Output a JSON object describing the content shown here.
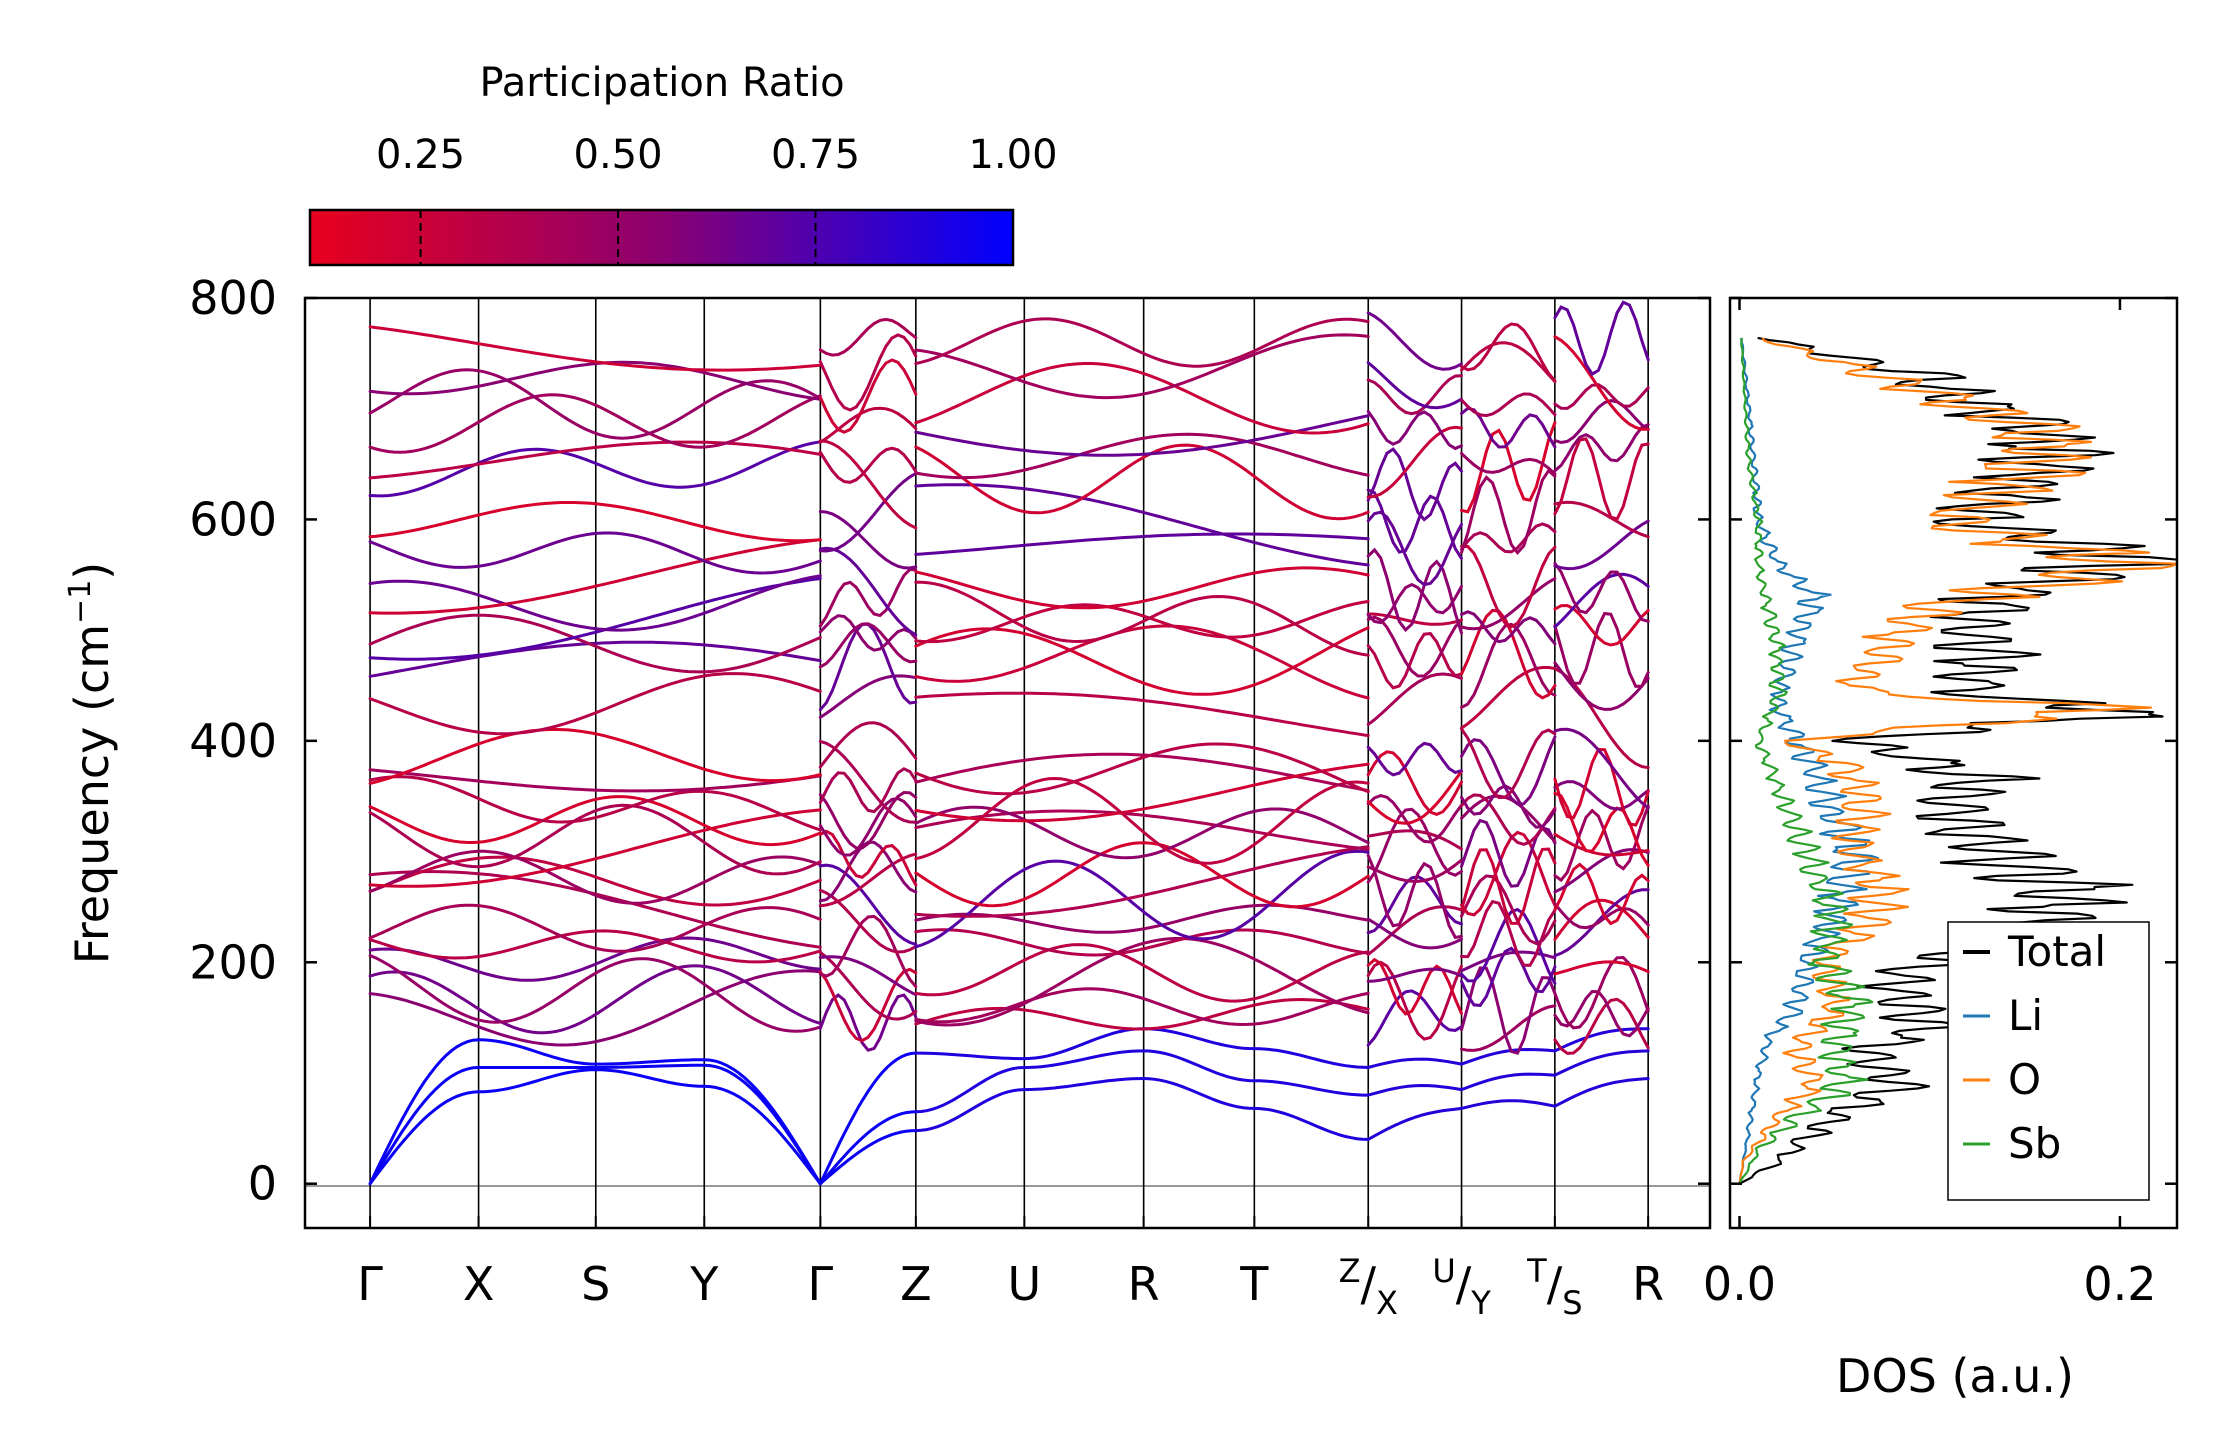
{
  "chart_data": [
    {
      "type": "line",
      "title": "",
      "subtype": "phonon-dispersion",
      "ylabel": "Frequency (cm⁻¹)",
      "ylabel_text": "Frequency (cm",
      "ylabel_sup": "−1",
      "ylabel_close": ")",
      "ylim": [
        -40,
        800
      ],
      "yticks": [
        0,
        200,
        400,
        600,
        800
      ],
      "ytick_labels": [
        "0",
        "200",
        "400",
        "600",
        "800"
      ],
      "kpath_labels": [
        "Γ",
        "X",
        "S",
        "Y",
        "Γ",
        "Z",
        "U",
        "R",
        "T",
        "Z|X",
        "U|Y",
        "T|S",
        "R"
      ],
      "kpath_label_parts": [
        {
          "main": "Γ"
        },
        {
          "main": "X"
        },
        {
          "main": "S"
        },
        {
          "main": "Y"
        },
        {
          "main": "Γ"
        },
        {
          "main": "Z"
        },
        {
          "main": "U"
        },
        {
          "main": "R"
        },
        {
          "main": "T"
        },
        {
          "sup": "Z",
          "sub": "X"
        },
        {
          "sup": "U",
          "sub": "Y"
        },
        {
          "sup": "T",
          "sub": "S"
        },
        {
          "main": "R"
        }
      ],
      "kpath_positions": [
        0,
        1,
        2.08,
        3.08,
        4.15,
        5.03,
        6.03,
        7.13,
        8.15,
        9.2,
        10.06,
        10.92,
        11.78
      ],
      "segments": [
        [
          0,
          4.15
        ],
        [
          4.15,
          5.03
        ],
        [
          5.03,
          9.2
        ],
        [
          9.2,
          10.06
        ],
        [
          10.06,
          10.92
        ],
        [
          10.92,
          11.78
        ]
      ],
      "colorbar": {
        "label": "Participation Ratio",
        "range": [
          0.11,
          1.0
        ],
        "ticks": [
          0.25,
          0.5,
          0.75,
          1.0
        ],
        "tick_labels": [
          "0.25",
          "0.50",
          "0.75",
          "1.00"
        ],
        "low_color": "#e8001e",
        "mid_color": "#8b0070",
        "high_color": "#0000ff"
      },
      "acoustic_branches": {
        "gamma_freq": 0,
        "X": [
          83,
          105,
          130
        ],
        "S": [
          103,
          105,
          108
        ],
        "Y": [
          88,
          107,
          112
        ],
        "Z": [
          48,
          65,
          118
        ],
        "U": [
          85,
          105,
          113
        ],
        "R": [
          95,
          120,
          140
        ],
        "T": [
          68,
          93,
          122
        ],
        "ZX": [
          40,
          80,
          105
        ],
        "UY": [
          68,
          85,
          108
        ],
        "TS": [
          70,
          98,
          120
        ]
      },
      "optical_band_frequencies_at_gamma": [
        145,
        162,
        180,
        195,
        218,
        232,
        250,
        268,
        280,
        302,
        318,
        330,
        352,
        365,
        382,
        430,
        465,
        485,
        505,
        520,
        540,
        575,
        600,
        640,
        658,
        685,
        710,
        730,
        760
      ]
    },
    {
      "type": "line",
      "title": "",
      "subtype": "density-of-states",
      "xlabel": "DOS (a.u.)",
      "xlim": [
        -0.005,
        0.23
      ],
      "xticks": [
        0.0,
        0.2
      ],
      "xtick_labels": [
        "0.0",
        "0.2"
      ],
      "ylim": [
        -40,
        800
      ],
      "legend_position": "lower-right",
      "series": [
        {
          "name": "Total",
          "color": "#000000",
          "peaks": [
            [
              0,
              0
            ],
            [
              20,
              0.02
            ],
            [
              60,
              0.05
            ],
            [
              90,
              0.085
            ],
            [
              120,
              0.065
            ],
            [
              140,
              0.1
            ],
            [
              180,
              0.08
            ],
            [
              200,
              0.1
            ],
            [
              230,
              0.16
            ],
            [
              270,
              0.17
            ],
            [
              290,
              0.14
            ],
            [
              300,
              0.13
            ],
            [
              340,
              0.11
            ],
            [
              365,
              0.13
            ],
            [
              400,
              0.06
            ],
            [
              428,
              0.22
            ],
            [
              440,
              0.12
            ],
            [
              470,
              0.13
            ],
            [
              500,
              0.12
            ],
            [
              535,
              0.14
            ],
            [
              566,
              0.215
            ],
            [
              595,
              0.12
            ],
            [
              645,
              0.16
            ],
            [
              680,
              0.165
            ],
            [
              712,
              0.11
            ],
            [
              730,
              0.1
            ],
            [
              765,
              0.01
            ]
          ]
        },
        {
          "name": "Li",
          "color": "#1f77b4",
          "peaks": [
            [
              0,
              0
            ],
            [
              50,
              0.005
            ],
            [
              100,
              0.01
            ],
            [
              130,
              0.015
            ],
            [
              160,
              0.03
            ],
            [
              200,
              0.035
            ],
            [
              240,
              0.05
            ],
            [
              300,
              0.06
            ],
            [
              330,
              0.05
            ],
            [
              370,
              0.04
            ],
            [
              400,
              0.03
            ],
            [
              430,
              0.02
            ],
            [
              470,
              0.025
            ],
            [
              530,
              0.04
            ],
            [
              560,
              0.02
            ],
            [
              600,
              0.01
            ],
            [
              700,
              0.005
            ],
            [
              765,
              0.001
            ]
          ]
        },
        {
          "name": "O",
          "color": "#ff7f0e",
          "peaks": [
            [
              0,
              0
            ],
            [
              20,
              0.002
            ],
            [
              60,
              0.02
            ],
            [
              90,
              0.04
            ],
            [
              120,
              0.03
            ],
            [
              160,
              0.05
            ],
            [
              200,
              0.045
            ],
            [
              240,
              0.07
            ],
            [
              270,
              0.075
            ],
            [
              300,
              0.06
            ],
            [
              340,
              0.065
            ],
            [
              380,
              0.055
            ],
            [
              400,
              0.025
            ],
            [
              428,
              0.2
            ],
            [
              445,
              0.06
            ],
            [
              470,
              0.07
            ],
            [
              520,
              0.1
            ],
            [
              560,
              0.21
            ],
            [
              595,
              0.11
            ],
            [
              640,
              0.15
            ],
            [
              678,
              0.16
            ],
            [
              715,
              0.1
            ],
            [
              765,
              0.01
            ]
          ]
        },
        {
          "name": "Sb",
          "color": "#2ca02c",
          "peaks": [
            [
              0,
              0
            ],
            [
              30,
              0.01
            ],
            [
              60,
              0.03
            ],
            [
              90,
              0.055
            ],
            [
              120,
              0.05
            ],
            [
              160,
              0.06
            ],
            [
              200,
              0.045
            ],
            [
              240,
              0.05
            ],
            [
              280,
              0.04
            ],
            [
              320,
              0.03
            ],
            [
              360,
              0.02
            ],
            [
              400,
              0.01
            ],
            [
              440,
              0.02
            ],
            [
              480,
              0.02
            ],
            [
              520,
              0.015
            ],
            [
              560,
              0.01
            ],
            [
              600,
              0.01
            ],
            [
              650,
              0.005
            ],
            [
              700,
              0.003
            ],
            [
              765,
              0.001
            ]
          ]
        }
      ]
    }
  ]
}
